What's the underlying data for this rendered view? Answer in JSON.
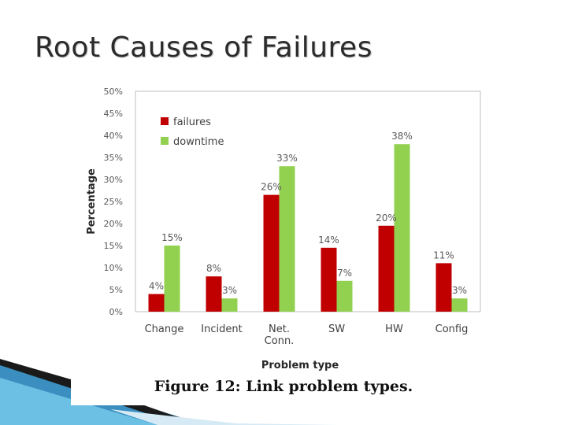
{
  "slide": {
    "title": "Root Causes of Failures",
    "caption": "Figure 12: Link problem types."
  },
  "colors": {
    "failures": "#c00000",
    "downtime": "#92d050",
    "plot_border": "#bfbfbf"
  },
  "chart_data": {
    "type": "bar",
    "xlabel": "Problem type",
    "ylabel": "Percentage",
    "categories": [
      [
        "Change"
      ],
      [
        "Incident"
      ],
      [
        "Net.",
        "Conn."
      ],
      [
        "SW"
      ],
      [
        "HW"
      ],
      [
        "Config"
      ]
    ],
    "ylim": [
      0,
      50
    ],
    "yticks": [
      0,
      5,
      10,
      15,
      20,
      25,
      30,
      35,
      40,
      45,
      50
    ],
    "ytick_labels": [
      "0%",
      "5%",
      "10%",
      "15%",
      "20%",
      "25%",
      "30%",
      "35%",
      "40%",
      "45%",
      "50%"
    ],
    "series": [
      {
        "name": "failures",
        "color": "#c00000",
        "values": [
          4,
          8,
          26.5,
          14.5,
          19.5,
          11
        ],
        "labels": [
          "4%",
          "8%",
          "26%",
          "14%",
          "20%",
          "11%"
        ]
      },
      {
        "name": "downtime",
        "color": "#92d050",
        "values": [
          15,
          3,
          33,
          7,
          38,
          3
        ],
        "labels": [
          "15%",
          "3%",
          "33%",
          "7%",
          "38%",
          "3%"
        ]
      }
    ],
    "legend": "top-left",
    "grid": false
  }
}
